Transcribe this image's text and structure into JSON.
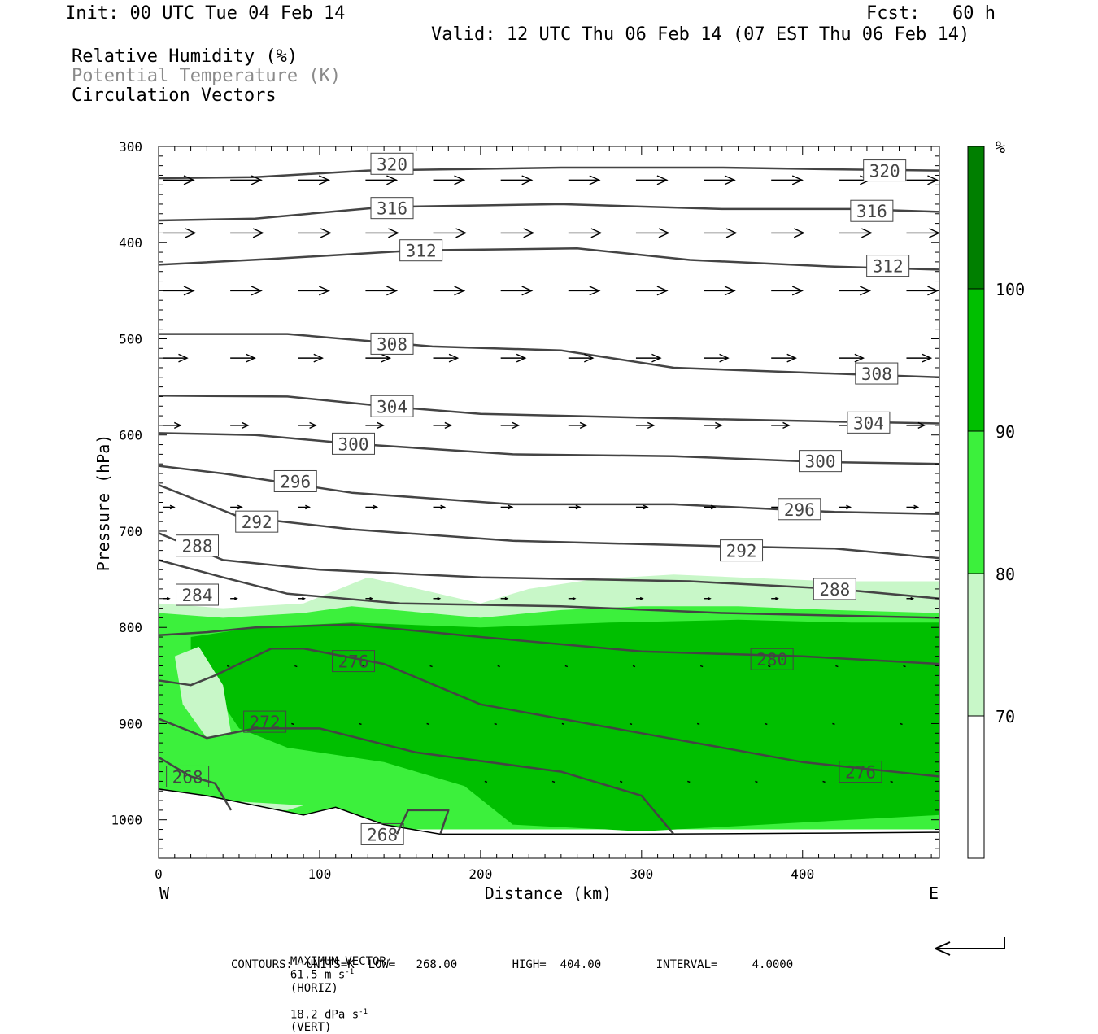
{
  "header": {
    "init": "Init: 00 UTC Tue 04 Feb 14",
    "fcst": "Fcst:   60 h",
    "valid": "Valid: 12 UTC Thu 06 Feb 14 (07 EST Thu 06 Feb 14)",
    "field1": "Relative Humidity (%)",
    "field2": "Potential Temperature (K)",
    "field3": "Circulation Vectors"
  },
  "footer": {
    "max_vector_label": "MAXIMUM VECTOR:",
    "max_vector_horiz": "61.5 m s",
    "horiz_tag": "(HORIZ)",
    "max_vector_vert": "18.2 dPa s",
    "vert_tag": "(VERT)",
    "exponent": "-1",
    "contours": "CONTOURS:  UNITS=K  LOW=   268.00        HIGH=  404.00        INTERVAL=     4.0000"
  },
  "colors": {
    "rh70": "#c8f7c8",
    "rh80": "#3cf03c",
    "rh90": "#00bf00",
    "rh100": "#007f00",
    "contour": "#444444"
  },
  "chart_data": {
    "type": "heatmap",
    "title": "Relative Humidity (%), Potential Temperature (K), Circulation Vectors",
    "xlabel": "Distance (km)",
    "ylabel": "Pressure (hPa)",
    "xlim": [
      0,
      485
    ],
    "ylim": [
      1040,
      300
    ],
    "x_ticks": [
      0,
      100,
      200,
      300,
      400
    ],
    "y_ticks": [
      300,
      400,
      500,
      600,
      700,
      800,
      900,
      1000
    ],
    "x_end_labels": {
      "left": "W",
      "right": "E"
    },
    "colorbar": {
      "unit": "%",
      "levels": [
        70,
        80,
        90,
        100
      ],
      "labels": [
        "70",
        "80",
        "90",
        "100"
      ]
    },
    "rh_regions": [
      {
        "level": 70,
        "points": [
          [
            0,
            775
          ],
          [
            40,
            780
          ],
          [
            90,
            775
          ],
          [
            130,
            748
          ],
          [
            200,
            775
          ],
          [
            230,
            760
          ],
          [
            270,
            750
          ],
          [
            320,
            745
          ],
          [
            360,
            748
          ],
          [
            420,
            752
          ],
          [
            485,
            752
          ],
          [
            485,
            1000
          ],
          [
            0,
            1000
          ]
        ]
      },
      {
        "level": 80,
        "points": [
          [
            0,
            785
          ],
          [
            40,
            790
          ],
          [
            90,
            785
          ],
          [
            120,
            778
          ],
          [
            200,
            790
          ],
          [
            250,
            782
          ],
          [
            300,
            778
          ],
          [
            360,
            778
          ],
          [
            420,
            782
          ],
          [
            485,
            785
          ],
          [
            485,
            1010
          ],
          [
            0,
            1010
          ]
        ]
      },
      {
        "level": 90,
        "points": [
          [
            20,
            810
          ],
          [
            60,
            800
          ],
          [
            120,
            795
          ],
          [
            200,
            800
          ],
          [
            280,
            795
          ],
          [
            360,
            792
          ],
          [
            430,
            795
          ],
          [
            485,
            795
          ],
          [
            485,
            995
          ],
          [
            300,
            1012
          ],
          [
            220,
            1005
          ],
          [
            190,
            965
          ],
          [
            140,
            940
          ],
          [
            80,
            925
          ],
          [
            50,
            905
          ],
          [
            40,
            880
          ],
          [
            30,
            850
          ],
          [
            20,
            840
          ]
        ]
      }
    ],
    "rh_holes": [
      {
        "level": 70,
        "points": [
          [
            10,
            830
          ],
          [
            25,
            820
          ],
          [
            40,
            860
          ],
          [
            45,
            910
          ],
          [
            30,
            915
          ],
          [
            15,
            880
          ]
        ]
      },
      {
        "level": 70,
        "points": [
          [
            40,
            980
          ],
          [
            90,
            985
          ],
          [
            80,
            990
          ],
          [
            50,
            990
          ]
        ]
      }
    ],
    "theta_contours": [
      {
        "value": 320,
        "points": [
          [
            0,
            333
          ],
          [
            60,
            332
          ],
          [
            130,
            325
          ],
          [
            250,
            322
          ],
          [
            350,
            322
          ],
          [
            430,
            324
          ],
          [
            485,
            325
          ]
        ],
        "labels": [
          [
            145,
            318
          ],
          [
            451,
            325
          ]
        ]
      },
      {
        "value": 316,
        "points": [
          [
            0,
            377
          ],
          [
            60,
            375
          ],
          [
            140,
            363
          ],
          [
            250,
            360
          ],
          [
            350,
            365
          ],
          [
            430,
            365
          ],
          [
            485,
            368
          ]
        ],
        "labels": [
          [
            145,
            364
          ],
          [
            443,
            367
          ]
        ]
      },
      {
        "value": 312,
        "points": [
          [
            0,
            423
          ],
          [
            70,
            417
          ],
          [
            160,
            408
          ],
          [
            260,
            406
          ],
          [
            330,
            418
          ],
          [
            420,
            425
          ],
          [
            485,
            428
          ]
        ],
        "labels": [
          [
            163,
            408
          ],
          [
            453,
            424
          ]
        ]
      },
      {
        "value": 308,
        "points": [
          [
            0,
            495
          ],
          [
            80,
            495
          ],
          [
            170,
            508
          ],
          [
            250,
            512
          ],
          [
            320,
            530
          ],
          [
            400,
            535
          ],
          [
            485,
            540
          ]
        ],
        "labels": [
          [
            145,
            505
          ],
          [
            446,
            536
          ]
        ]
      },
      {
        "value": 304,
        "points": [
          [
            0,
            559
          ],
          [
            80,
            560
          ],
          [
            140,
            570
          ],
          [
            200,
            578
          ],
          [
            300,
            582
          ],
          [
            420,
            586
          ],
          [
            485,
            588
          ]
        ],
        "labels": [
          [
            145,
            570
          ],
          [
            441,
            587
          ]
        ]
      },
      {
        "value": 300,
        "points": [
          [
            0,
            598
          ],
          [
            60,
            600
          ],
          [
            120,
            609
          ],
          [
            220,
            620
          ],
          [
            320,
            622
          ],
          [
            410,
            628
          ],
          [
            485,
            630
          ]
        ],
        "labels": [
          [
            121,
            609
          ],
          [
            411,
            627
          ]
        ]
      },
      {
        "value": 296,
        "points": [
          [
            0,
            632
          ],
          [
            40,
            640
          ],
          [
            120,
            660
          ],
          [
            220,
            672
          ],
          [
            320,
            672
          ],
          [
            420,
            680
          ],
          [
            485,
            682
          ]
        ],
        "labels": [
          [
            85,
            648
          ],
          [
            398,
            677
          ]
        ]
      },
      {
        "value": 292,
        "points": [
          [
            0,
            652
          ],
          [
            50,
            685
          ],
          [
            120,
            698
          ],
          [
            220,
            710
          ],
          [
            360,
            716
          ],
          [
            420,
            718
          ],
          [
            485,
            728
          ]
        ],
        "labels": [
          [
            61,
            690
          ],
          [
            362,
            720
          ]
        ]
      },
      {
        "value": 288,
        "points": [
          [
            0,
            702
          ],
          [
            40,
            730
          ],
          [
            100,
            740
          ],
          [
            200,
            748
          ],
          [
            330,
            752
          ],
          [
            420,
            760
          ],
          [
            485,
            770
          ]
        ],
        "labels": [
          [
            24,
            715
          ],
          [
            420,
            760
          ]
        ]
      },
      {
        "value": 284,
        "points": [
          [
            0,
            730
          ],
          [
            40,
            748
          ],
          [
            80,
            765
          ],
          [
            150,
            775
          ],
          [
            250,
            778
          ],
          [
            350,
            785
          ],
          [
            485,
            790
          ]
        ],
        "labels": [
          [
            24,
            766
          ]
        ]
      },
      {
        "value": 280,
        "points": [
          [
            0,
            808
          ],
          [
            30,
            805
          ],
          [
            60,
            800
          ],
          [
            120,
            797
          ],
          [
            200,
            810
          ],
          [
            300,
            825
          ],
          [
            400,
            830
          ],
          [
            485,
            838
          ]
        ],
        "labels": [
          [
            381,
            833
          ]
        ]
      },
      {
        "value": 276,
        "points": [
          [
            0,
            855
          ],
          [
            20,
            860
          ],
          [
            35,
            850
          ],
          [
            70,
            822
          ],
          [
            90,
            822
          ],
          [
            140,
            838
          ],
          [
            200,
            880
          ],
          [
            300,
            910
          ],
          [
            400,
            940
          ],
          [
            485,
            955
          ]
        ],
        "labels": [
          [
            121,
            835
          ],
          [
            436,
            950
          ]
        ]
      },
      {
        "value": 272,
        "points": [
          [
            0,
            895
          ],
          [
            30,
            915
          ],
          [
            60,
            905
          ],
          [
            100,
            905
          ],
          [
            160,
            930
          ],
          [
            250,
            950
          ],
          [
            300,
            975
          ],
          [
            320,
            1015
          ]
        ],
        "labels": [
          [
            66,
            898
          ]
        ]
      },
      {
        "value": 268,
        "points": [
          [
            0,
            935
          ],
          [
            20,
            955
          ],
          [
            35,
            962
          ],
          [
            45,
            990
          ]
        ],
        "labels": [
          [
            18,
            955
          ],
          [
            139,
            1015
          ]
        ]
      },
      {
        "value": 268,
        "points": [
          [
            148,
            1015
          ],
          [
            155,
            990
          ],
          [
            180,
            990
          ],
          [
            175,
            1015
          ]
        ],
        "labels": []
      }
    ],
    "ground": [
      [
        0,
        968
      ],
      [
        30,
        975
      ],
      [
        60,
        985
      ],
      [
        90,
        995
      ],
      [
        110,
        987
      ],
      [
        140,
        1005
      ],
      [
        175,
        1015
      ],
      [
        300,
        1015
      ],
      [
        400,
        1014
      ],
      [
        485,
        1013
      ]
    ],
    "vector_rows": [
      {
        "p": 335,
        "start": 0,
        "end": 485,
        "step": 42,
        "len": 38,
        "tilt": 0
      },
      {
        "p": 390,
        "start": 0,
        "end": 485,
        "step": 42,
        "len": 40,
        "tilt": 0
      },
      {
        "p": 450,
        "start": 0,
        "end": 485,
        "step": 42,
        "len": 38,
        "tilt": 0
      },
      {
        "p": 520,
        "start": 0,
        "end": 485,
        "step": 42,
        "len": 30,
        "tilt": 0
      },
      {
        "p": 590,
        "start": 0,
        "end": 485,
        "step": 42,
        "len": 22,
        "tilt": 0
      },
      {
        "p": 675,
        "start": 0,
        "end": 485,
        "step": 42,
        "len": 14,
        "tilt": 0
      },
      {
        "p": 770,
        "start": 0,
        "end": 485,
        "step": 42,
        "len": 8,
        "tilt": 0
      },
      {
        "p": 840,
        "start": 40,
        "end": 485,
        "step": 42,
        "len": 3,
        "tilt": 1
      },
      {
        "p": 900,
        "start": 80,
        "end": 485,
        "step": 42,
        "len": 3,
        "tilt": 1
      },
      {
        "p": 960,
        "start": 200,
        "end": 485,
        "step": 42,
        "len": 3,
        "tilt": 1
      }
    ]
  }
}
